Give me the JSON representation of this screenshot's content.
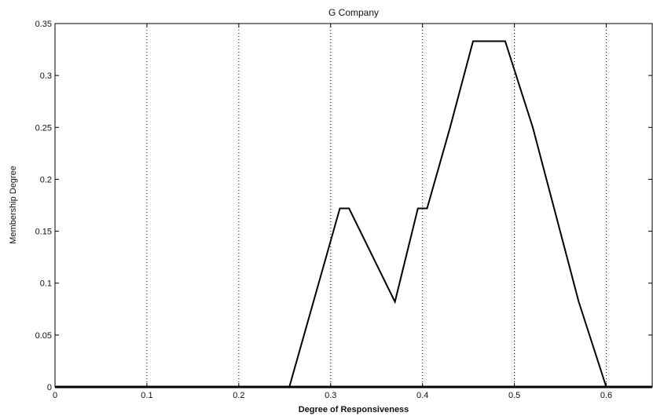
{
  "chart_data": {
    "type": "line",
    "title": "G Company",
    "xlabel": "Degree of Responsiveness",
    "ylabel": "Membership Degree",
    "xlim": [
      0,
      0.65
    ],
    "ylim": [
      0,
      0.35
    ],
    "grid": true,
    "x_ticks": [
      0,
      0.1,
      0.2,
      0.3,
      0.4,
      0.5,
      0.6
    ],
    "x_tick_labels": [
      "0",
      "0.1",
      "0.2",
      "0.3",
      "0.4",
      "0.5",
      "0.6"
    ],
    "y_ticks": [
      0,
      0.05,
      0.1,
      0.15,
      0.2,
      0.25,
      0.3,
      0.35
    ],
    "y_tick_labels": [
      "0",
      "0.05",
      "0.1",
      "0.15",
      "0.2",
      "0.25",
      "0.3",
      "0.35"
    ],
    "series": [
      {
        "color": "#000000",
        "points": [
          {
            "x": 0.255,
            "y": 0.0
          },
          {
            "x": 0.31,
            "y": 0.172
          },
          {
            "x": 0.32,
            "y": 0.172
          },
          {
            "x": 0.37,
            "y": 0.082
          },
          {
            "x": 0.395,
            "y": 0.172
          },
          {
            "x": 0.405,
            "y": 0.172
          },
          {
            "x": 0.43,
            "y": 0.25
          },
          {
            "x": 0.455,
            "y": 0.333
          },
          {
            "x": 0.49,
            "y": 0.333
          },
          {
            "x": 0.52,
            "y": 0.25
          },
          {
            "x": 0.57,
            "y": 0.082
          },
          {
            "x": 0.6,
            "y": 0.0
          }
        ]
      }
    ]
  }
}
